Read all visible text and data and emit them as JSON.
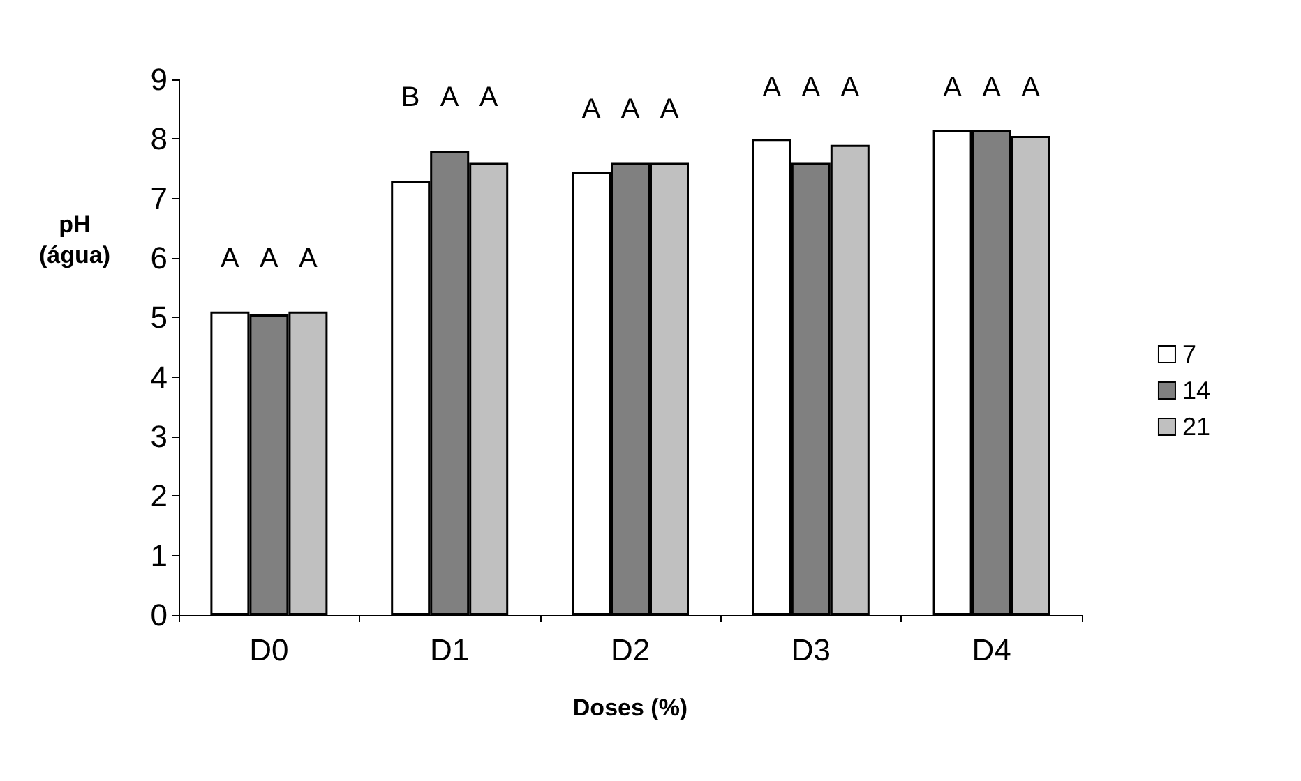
{
  "chart_data": {
    "type": "bar",
    "xlabel": "Doses (%)",
    "ylabel": "pH\n(água)",
    "categories": [
      "D0",
      "D1",
      "D2",
      "D3",
      "D4"
    ],
    "series": [
      {
        "name": "7",
        "color": "#ffffff",
        "values": [
          5.1,
          7.3,
          7.45,
          8.0,
          8.15
        ]
      },
      {
        "name": "14",
        "color": "#808080",
        "values": [
          5.05,
          7.8,
          7.6,
          7.6,
          8.15
        ]
      },
      {
        "name": "21",
        "color": "#c0c0c0",
        "values": [
          5.1,
          7.6,
          7.6,
          7.9,
          8.05
        ]
      }
    ],
    "ylim": [
      0,
      9
    ],
    "yticks": [
      0,
      1,
      2,
      3,
      4,
      5,
      6,
      7,
      8,
      9
    ],
    "grid": false,
    "legend": "right",
    "annotations": [
      "A",
      "A",
      "A",
      "B",
      "A",
      "A",
      "A",
      "A",
      "A",
      "A",
      "A",
      "A",
      "A",
      "A",
      "A"
    ]
  }
}
